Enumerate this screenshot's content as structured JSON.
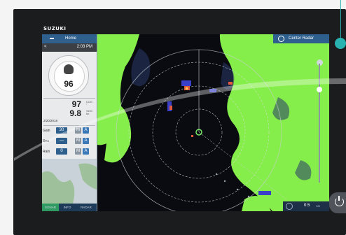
{
  "device": {
    "brand": "SUZUKI"
  },
  "panel": {
    "home_label": "Home",
    "back_glyph": "<",
    "time": "2:03 PM",
    "heading": "96",
    "cog": {
      "value": "97",
      "unit_top": "COG",
      "unit_bottom": "°"
    },
    "sog": {
      "value": "9.8",
      "unit_top": "SOG",
      "unit_bottom": "kn"
    },
    "date": "2/20/2018",
    "controls": [
      {
        "label": "Gain",
        "value": "30",
        "m": "M",
        "a": "A"
      },
      {
        "label": "Sea",
        "value": "—",
        "m": "M",
        "a": "A"
      },
      {
        "label": "Rain",
        "value": "0",
        "m": "M",
        "a": "A"
      }
    ],
    "tabs": [
      "SONAR",
      "INFO",
      "RADAR"
    ]
  },
  "radar": {
    "center_label": "Center Radar",
    "range_value": "0.5",
    "range_unit": "NM",
    "gain_level": 0.78
  },
  "colors": {
    "land": "#86ee4a",
    "echo": "#3a40c8",
    "accent": "#2f5f8d",
    "pin": "#29b3b0"
  },
  "icons": {
    "home": "home-icon",
    "center": "target-icon",
    "power": "power-icon",
    "range": "range-icon"
  }
}
